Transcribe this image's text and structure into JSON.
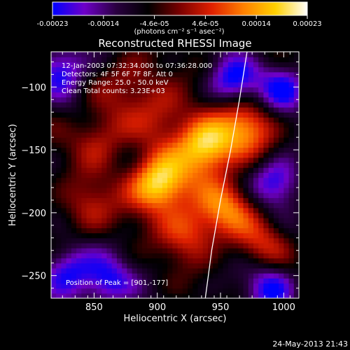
{
  "colorbar": {
    "ticks": [
      "-0.00023",
      "-0.00014",
      "-4.6e-05",
      "4.6e-05",
      "0.00014",
      "0.00023"
    ],
    "unit_label": "(photons cm⁻² s⁻¹ asec⁻²)",
    "range": [
      -0.00023,
      0.00023
    ],
    "colormap": [
      "#0000ff",
      "#6e00c8",
      "#2a0040",
      "#000000",
      "#7a0000",
      "#e02000",
      "#ff8000",
      "#ffd000",
      "#ffffff"
    ]
  },
  "chart_data": {
    "type": "heatmap",
    "title": "Reconstructed RHESSI Image",
    "xlabel": "Heliocentric X (arcsec)",
    "ylabel": "Heliocentric Y (arcsec)",
    "xlim": [
      816,
      1012
    ],
    "ylim": [
      -268,
      -72
    ],
    "xticks": [
      850,
      900,
      950,
      1000
    ],
    "yticks": [
      -100,
      -150,
      -200,
      -250
    ],
    "annotations": {
      "time_range": "12-Jan-2003 07:32:34.000 to 07:36:28.000",
      "detectors": "Detectors: 4F 5F 6F 7F 8F, Att 0",
      "energy": "Energy Range: 25.0 - 50.0 keV",
      "clean": "Clean    Total counts: 3.23E+03",
      "peak": "Position of Peak = [901,-177]"
    },
    "peak": [
      901,
      -177
    ],
    "limb_curve": {
      "x": [
        971,
        965,
        958,
        950,
        943,
        938
      ],
      "y": [
        -72,
        -110,
        -150,
        -190,
        -230,
        -268
      ]
    },
    "sources": [
      {
        "x": 901,
        "y": -177,
        "intensity": 1.0
      },
      {
        "x": 938,
        "y": -147,
        "intensity": 0.95
      },
      {
        "x": 970,
        "y": -132,
        "intensity": 0.6
      },
      {
        "x": 955,
        "y": -195,
        "intensity": 0.55
      },
      {
        "x": 925,
        "y": -215,
        "intensity": 0.5
      },
      {
        "x": 905,
        "y": -120,
        "intensity": 0.35
      },
      {
        "x": 855,
        "y": -140,
        "intensity": 0.4
      },
      {
        "x": 845,
        "y": -195,
        "intensity": 0.35
      },
      {
        "x": 985,
        "y": -225,
        "intensity": 0.35
      },
      {
        "x": 880,
        "y": -95,
        "intensity": 0.3
      }
    ],
    "troughs": [
      {
        "x": 830,
        "y": -245
      },
      {
        "x": 860,
        "y": -255
      },
      {
        "x": 960,
        "y": -95
      },
      {
        "x": 1000,
        "y": -100
      },
      {
        "x": 995,
        "y": -175
      },
      {
        "x": 990,
        "y": -258
      },
      {
        "x": 825,
        "y": -85
      }
    ]
  },
  "footer": {
    "timestamp": "24-May-2013 21:43"
  }
}
